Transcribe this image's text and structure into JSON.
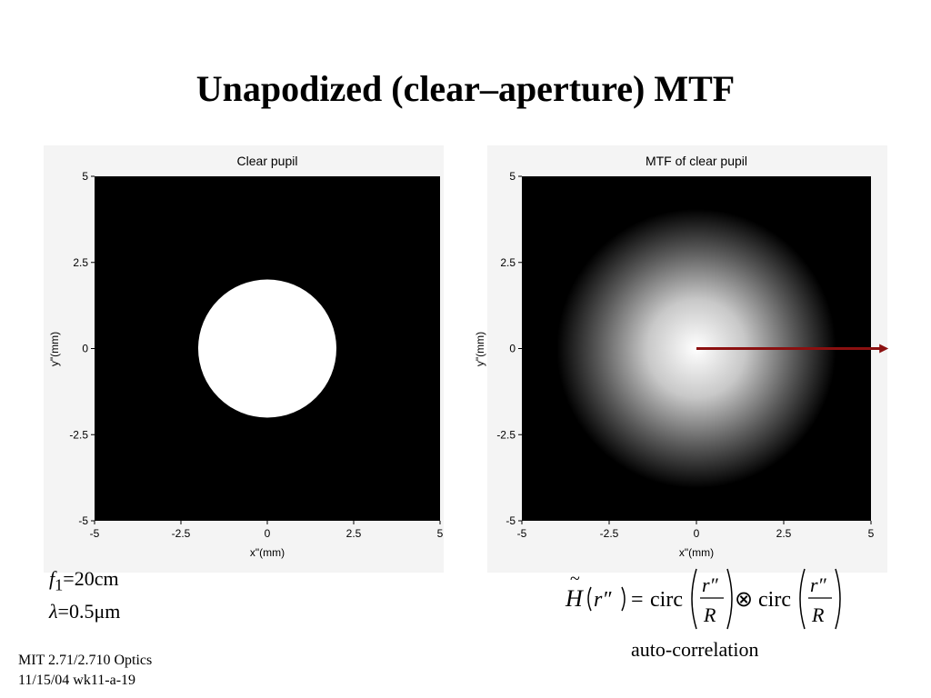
{
  "slide": {
    "title": "Unapodized (clear–aperture) MTF"
  },
  "chart_data": [
    {
      "type": "heatmap",
      "title": "Clear pupil",
      "xlabel": "x\"(mm)",
      "ylabel": "y\"(mm)",
      "xlim": [
        -5,
        5
      ],
      "ylim": [
        -5,
        5
      ],
      "x_ticks": [
        "-5",
        "-2.5",
        "0",
        "2.5",
        "5"
      ],
      "y_ticks": [
        "5",
        "2.5",
        "0",
        "-2.5",
        "-5"
      ],
      "pupil_radius_mm": 2,
      "colors": {
        "background": "#000000",
        "pupil": "#ffffff"
      }
    },
    {
      "type": "heatmap",
      "title": "MTF of clear pupil",
      "xlabel": "x\"(mm)",
      "ylabel": "y\"(mm)",
      "xlim": [
        -5,
        5
      ],
      "ylim": [
        -5,
        5
      ],
      "x_ticks": [
        "-5",
        "-2.5",
        "0",
        "2.5",
        "5"
      ],
      "y_ticks": [
        "5",
        "2.5",
        "0",
        "-2.5",
        "-5"
      ],
      "mtf_radius_mm": 4,
      "arrow": {
        "from": [
          0,
          0
        ],
        "to": [
          5.5,
          0
        ],
        "color": "#8b1010"
      },
      "colors": {
        "background": "#000000",
        "peak": "#ffffff"
      }
    }
  ],
  "params": {
    "f_symbol": "f",
    "f_sub": "1",
    "f_value": "=20cm",
    "lambda_symbol": "λ",
    "lambda_value": "=0.5μm"
  },
  "formula": {
    "lhs_symbol": "H",
    "lhs_arg": "r″",
    "equals": "=",
    "circ": "circ",
    "conv": "⊗",
    "num": "r″",
    "den": "R",
    "tilde": "~"
  },
  "caption": "auto-correlation",
  "footer": {
    "line1": "MIT 2.71/2.710 Optics",
    "line2": "11/15/04 wk11-a-19"
  }
}
